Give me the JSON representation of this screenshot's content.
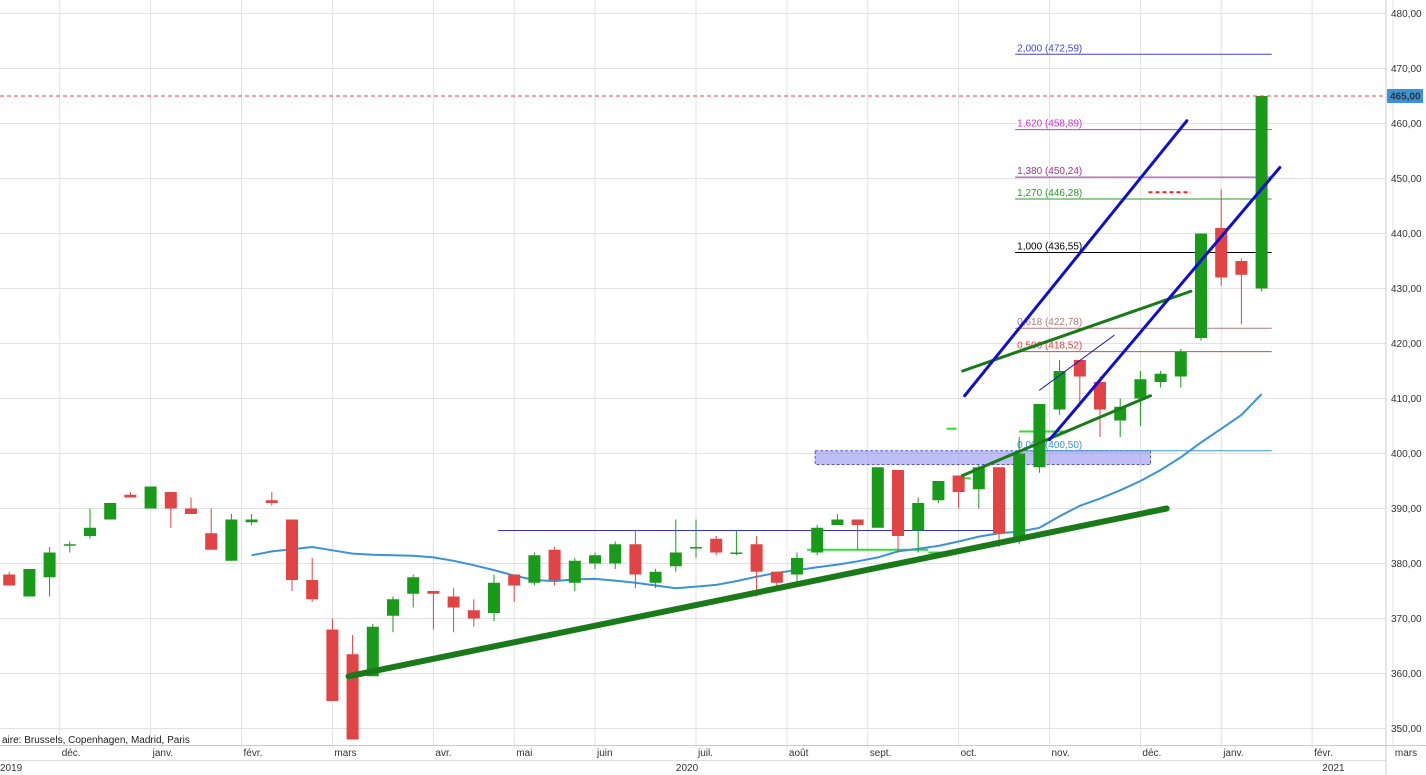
{
  "chart_data": {
    "type": "candlestick",
    "frequency": "weekly",
    "exchange_note": "aire: Brussels, Copenhagen, Madrid, Paris",
    "y_axis": {
      "position": "right",
      "range": [
        347,
        481
      ],
      "ticks": [
        "350,00",
        "360,00",
        "370,00",
        "380,00",
        "390,00",
        "400,00",
        "410,00",
        "420,00",
        "430,00",
        "440,00",
        "450,00",
        "460,00",
        "470,00",
        "480,00"
      ],
      "tick_values": [
        350,
        360,
        370,
        380,
        390,
        400,
        410,
        420,
        430,
        440,
        450,
        460,
        470,
        480
      ]
    },
    "x_axis": {
      "month_labels": [
        "déc.",
        "janv.",
        "févr.",
        "mars",
        "avr.",
        "mai",
        "juin",
        "juil.",
        "août",
        "sept.",
        "oct.",
        "nov.",
        "déc.",
        "janv.",
        "févr.",
        "mars"
      ],
      "month_idx": [
        2.5,
        7,
        11.5,
        16,
        21,
        25,
        29,
        34,
        38.5,
        42.5,
        47,
        51.5,
        56,
        60,
        64.5,
        68.5
      ],
      "year_labels": [
        "2019",
        "2020",
        "2021"
      ],
      "year_idx": [
        0,
        33.5,
        65.5
      ],
      "visible_weeks": 70
    },
    "current_price": "465,00",
    "current_price_value": 465,
    "grid": true,
    "candles": [
      {
        "o": 378,
        "h": 378.5,
        "l": 376,
        "c": 376
      },
      {
        "o": 374,
        "h": 379,
        "l": 374,
        "c": 379
      },
      {
        "o": 377.5,
        "h": 383,
        "l": 374,
        "c": 382
      },
      {
        "o": 383.5,
        "h": 384,
        "l": 382,
        "c": 383.5
      },
      {
        "o": 385,
        "h": 390,
        "l": 384.5,
        "c": 386.5
      },
      {
        "o": 388,
        "h": 391,
        "l": 388,
        "c": 391
      },
      {
        "o": 392.5,
        "h": 393,
        "l": 392,
        "c": 392
      },
      {
        "o": 390,
        "h": 394,
        "l": 390,
        "c": 394
      },
      {
        "o": 393,
        "h": 393,
        "l": 386.5,
        "c": 390
      },
      {
        "o": 390,
        "h": 392,
        "l": 389,
        "c": 389
      },
      {
        "o": 385.5,
        "h": 390,
        "l": 382.5,
        "c": 382.5
      },
      {
        "o": 380.5,
        "h": 389,
        "l": 380.5,
        "c": 388
      },
      {
        "o": 387.5,
        "h": 389,
        "l": 387,
        "c": 388
      },
      {
        "o": 391.5,
        "h": 393,
        "l": 390.5,
        "c": 391
      },
      {
        "o": 388,
        "h": 388,
        "l": 375,
        "c": 377
      },
      {
        "o": 377,
        "h": 381,
        "l": 373,
        "c": 373.5
      },
      {
        "o": 368,
        "h": 370,
        "l": 355,
        "c": 355
      },
      {
        "o": 363.5,
        "h": 367,
        "l": 348,
        "c": 348
      },
      {
        "o": 359.5,
        "h": 369,
        "l": 359.5,
        "c": 368.5
      },
      {
        "o": 370.5,
        "h": 374,
        "l": 367.5,
        "c": 373.5
      },
      {
        "o": 374.5,
        "h": 378,
        "l": 372,
        "c": 377.5
      },
      {
        "o": 375,
        "h": 375,
        "l": 368,
        "c": 374.5
      },
      {
        "o": 374,
        "h": 375.5,
        "l": 367.5,
        "c": 372
      },
      {
        "o": 371.5,
        "h": 373.5,
        "l": 368.5,
        "c": 370
      },
      {
        "o": 371,
        "h": 378,
        "l": 369.5,
        "c": 376.5
      },
      {
        "o": 378,
        "h": 378,
        "l": 373,
        "c": 376
      },
      {
        "o": 376.5,
        "h": 382,
        "l": 376,
        "c": 381.5
      },
      {
        "o": 382.5,
        "h": 383,
        "l": 376,
        "c": 377
      },
      {
        "o": 376.5,
        "h": 381,
        "l": 375,
        "c": 380.5
      },
      {
        "o": 380,
        "h": 382,
        "l": 379,
        "c": 381.5
      },
      {
        "o": 380,
        "h": 384,
        "l": 379,
        "c": 383.5
      },
      {
        "o": 383.5,
        "h": 386,
        "l": 375.5,
        "c": 378
      },
      {
        "o": 376.5,
        "h": 379,
        "l": 375.5,
        "c": 378.5
      },
      {
        "o": 379.5,
        "h": 388,
        "l": 378.5,
        "c": 382
      },
      {
        "o": 383,
        "h": 388,
        "l": 381,
        "c": 383
      },
      {
        "o": 384.5,
        "h": 385,
        "l": 381.5,
        "c": 382
      },
      {
        "o": 382,
        "h": 386,
        "l": 381.5,
        "c": 382
      },
      {
        "o": 383.5,
        "h": 385,
        "l": 374,
        "c": 378.5
      },
      {
        "o": 378.5,
        "h": 378.5,
        "l": 376,
        "c": 376.5
      },
      {
        "o": 378,
        "h": 382,
        "l": 376,
        "c": 381
      },
      {
        "o": 382,
        "h": 387,
        "l": 381.5,
        "c": 386.5
      },
      {
        "o": 387,
        "h": 389,
        "l": 387,
        "c": 388
      },
      {
        "o": 388,
        "h": 388,
        "l": 382.5,
        "c": 387
      },
      {
        "o": 386.5,
        "h": 397.5,
        "l": 386.5,
        "c": 397.5
      },
      {
        "o": 397,
        "h": 397,
        "l": 382,
        "c": 385
      },
      {
        "o": 386,
        "h": 392,
        "l": 382,
        "c": 391
      },
      {
        "o": 391.5,
        "h": 395,
        "l": 391,
        "c": 395
      },
      {
        "o": 396,
        "h": 396,
        "l": 390,
        "c": 393
      },
      {
        "o": 393.5,
        "h": 398,
        "l": 390,
        "c": 397.5
      },
      {
        "o": 397.5,
        "h": 397.5,
        "l": 383,
        "c": 385.5
      },
      {
        "o": 384.5,
        "h": 403,
        "l": 383.5,
        "c": 400
      },
      {
        "o": 397.5,
        "h": 409,
        "l": 396.5,
        "c": 409
      },
      {
        "o": 408,
        "h": 417,
        "l": 407,
        "c": 415
      },
      {
        "o": 417,
        "h": 417,
        "l": 408.5,
        "c": 414
      },
      {
        "o": 413,
        "h": 414,
        "l": 403,
        "c": 408
      },
      {
        "o": 406,
        "h": 410,
        "l": 403,
        "c": 408.5
      },
      {
        "o": 410,
        "h": 415,
        "l": 405,
        "c": 413.5
      },
      {
        "o": 413,
        "h": 415,
        "l": 412,
        "c": 414.5
      },
      {
        "o": 414,
        "h": 419,
        "l": 412,
        "c": 418.5
      },
      {
        "o": 421,
        "h": 440,
        "l": 420.5,
        "c": 440
      },
      {
        "o": 441,
        "h": 448,
        "l": 430.5,
        "c": 432
      },
      {
        "o": 435,
        "h": 435.5,
        "l": 423.5,
        "c": 432.5
      },
      {
        "o": 430,
        "h": 465,
        "l": 429.5,
        "c": 465
      }
    ],
    "moving_average": {
      "color": "#3a93d6",
      "start_index": 12,
      "values": [
        381.5,
        382.2,
        382.6,
        383.0,
        382.4,
        381.8,
        381.6,
        381.5,
        381.4,
        381.1,
        380.5,
        379.7,
        378.8,
        377.8,
        377.0,
        376.8,
        377.1,
        377.2,
        376.9,
        376.5,
        376.0,
        375.5,
        375.8,
        376.1,
        376.8,
        377.6,
        378.3,
        378.8,
        379.3,
        379.8,
        380.4,
        381.1,
        382.2,
        382.7,
        383.2,
        384.0,
        384.9,
        385.5,
        385.8,
        386.5,
        388.6,
        390.5,
        391.8,
        393.3,
        395.0,
        397.0,
        399.3,
        402.0,
        404.5,
        407.0,
        410.8
      ]
    },
    "fibonacci": {
      "x_range_idx": [
        49.8,
        62.5
      ],
      "levels": [
        {
          "label": "2,000 (472,59)",
          "value": 472.59,
          "color": "#4444cc"
        },
        {
          "label": "1,620 (458,89)",
          "value": 458.89,
          "color": "#cc33cc"
        },
        {
          "label": "1,380 (450,24)",
          "value": 450.24,
          "color": "#993399"
        },
        {
          "label": "1,270 (446,28)",
          "value": 446.28,
          "color": "#2a9a2a"
        },
        {
          "label": "1,000 (436,55)",
          "value": 436.55,
          "color": "#000000"
        },
        {
          "label": "0,618 (422,78)",
          "value": 422.78,
          "color": "#b07a7a"
        },
        {
          "label": "0,500 (418,52)",
          "value": 418.52,
          "color": "#e04444"
        },
        {
          "label": "0,000 (400,50)",
          "value": 400.5,
          "color": "#3a93d6"
        }
      ]
    },
    "zone": {
      "y_low": 398,
      "y_high": 400.5,
      "idx_range": [
        39.9,
        56.5
      ],
      "color": "#8080ee"
    },
    "horizontal_lines": [
      {
        "y": 386,
        "idx_range": [
          24.2,
          49.2
        ],
        "color": "#3333cc",
        "width": 1
      },
      {
        "y": 382.5,
        "idx_range": [
          39.5,
          45.5
        ],
        "color": "#33dd33",
        "width": 2
      },
      {
        "y": 382,
        "idx_range": [
          45.5,
          46.5
        ],
        "color": "#33dd33",
        "width": 2
      },
      {
        "y": 404.5,
        "idx_range": [
          46.4,
          46.9
        ],
        "color": "#33dd33",
        "width": 2
      },
      {
        "y": 395.5,
        "idx_range": [
          47.2,
          47.6
        ],
        "color": "#33dd33",
        "width": 2
      },
      {
        "y": 404,
        "idx_range": [
          50.0,
          52.2
        ],
        "color": "#33dd33",
        "width": 2
      },
      {
        "y": 447.5,
        "idx_range": [
          56.4,
          58.5
        ],
        "color": "#ee2222",
        "width": 2,
        "dash": true
      }
    ],
    "trendlines": [
      {
        "points": [
          [
            16.8,
            359.5
          ],
          [
            57.3,
            390
          ]
        ],
        "color": "#1a7a1a",
        "width": 6
      },
      {
        "points": [
          [
            47.2,
            396
          ],
          [
            56.5,
            410.5
          ]
        ],
        "color": "#1a7a1a",
        "width": 3
      },
      {
        "points": [
          [
            47.2,
            415
          ],
          [
            58.5,
            429.5
          ]
        ],
        "color": "#1a7a1a",
        "width": 3
      },
      {
        "points": [
          [
            47.3,
            410.5
          ],
          [
            58.3,
            460.5
          ]
        ],
        "color": "#1010cc",
        "width": 3
      },
      {
        "points": [
          [
            51.5,
            402.5
          ],
          [
            62.9,
            452
          ]
        ],
        "color": "#1010cc",
        "width": 3
      },
      {
        "points": [
          [
            51.0,
            411.5
          ],
          [
            54.7,
            421.5
          ]
        ],
        "color": "#1010cc",
        "width": 1
      }
    ],
    "resistance_line": {
      "y": 465,
      "color": "#e04444",
      "dash": true
    }
  }
}
